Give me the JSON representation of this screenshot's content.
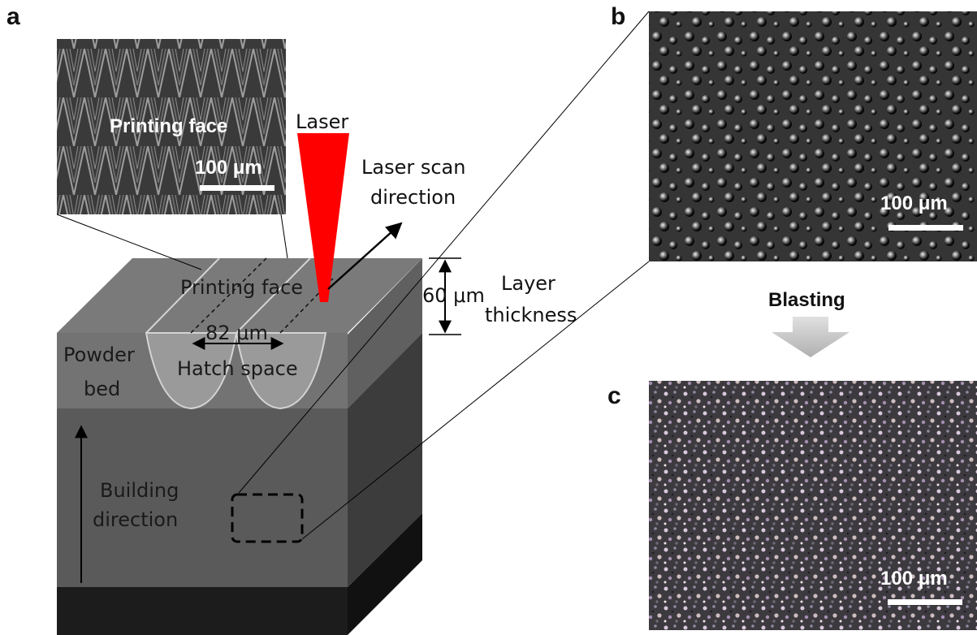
{
  "panels": {
    "a": "a",
    "b": "b",
    "c": "c"
  },
  "inset": {
    "title": "Printing face",
    "scale_bar": "100 μm"
  },
  "laser": {
    "label": "Laser",
    "scan_direction_line1": "Laser scan",
    "scan_direction_line2": "direction"
  },
  "block": {
    "printing_face": "Printing face",
    "hatch_width": "82 μm",
    "hatch_space": "Hatch space",
    "powder_line1": "Powder",
    "powder_line2": "bed",
    "building_line1": "Building",
    "building_line2": "direction"
  },
  "layer": {
    "thickness_value": "60 μm",
    "label_line1": "Layer",
    "label_line2": "thickness"
  },
  "micrograph_b": {
    "scale_bar": "100 μm"
  },
  "process": {
    "label": "Blasting"
  },
  "micrograph_c": {
    "scale_bar": "100 μm"
  },
  "colors": {
    "laser": "#ff0000",
    "block_top": "#7a7a7a",
    "block_front": "#5a5a5a",
    "block_bottom": "#1c1c1c"
  }
}
